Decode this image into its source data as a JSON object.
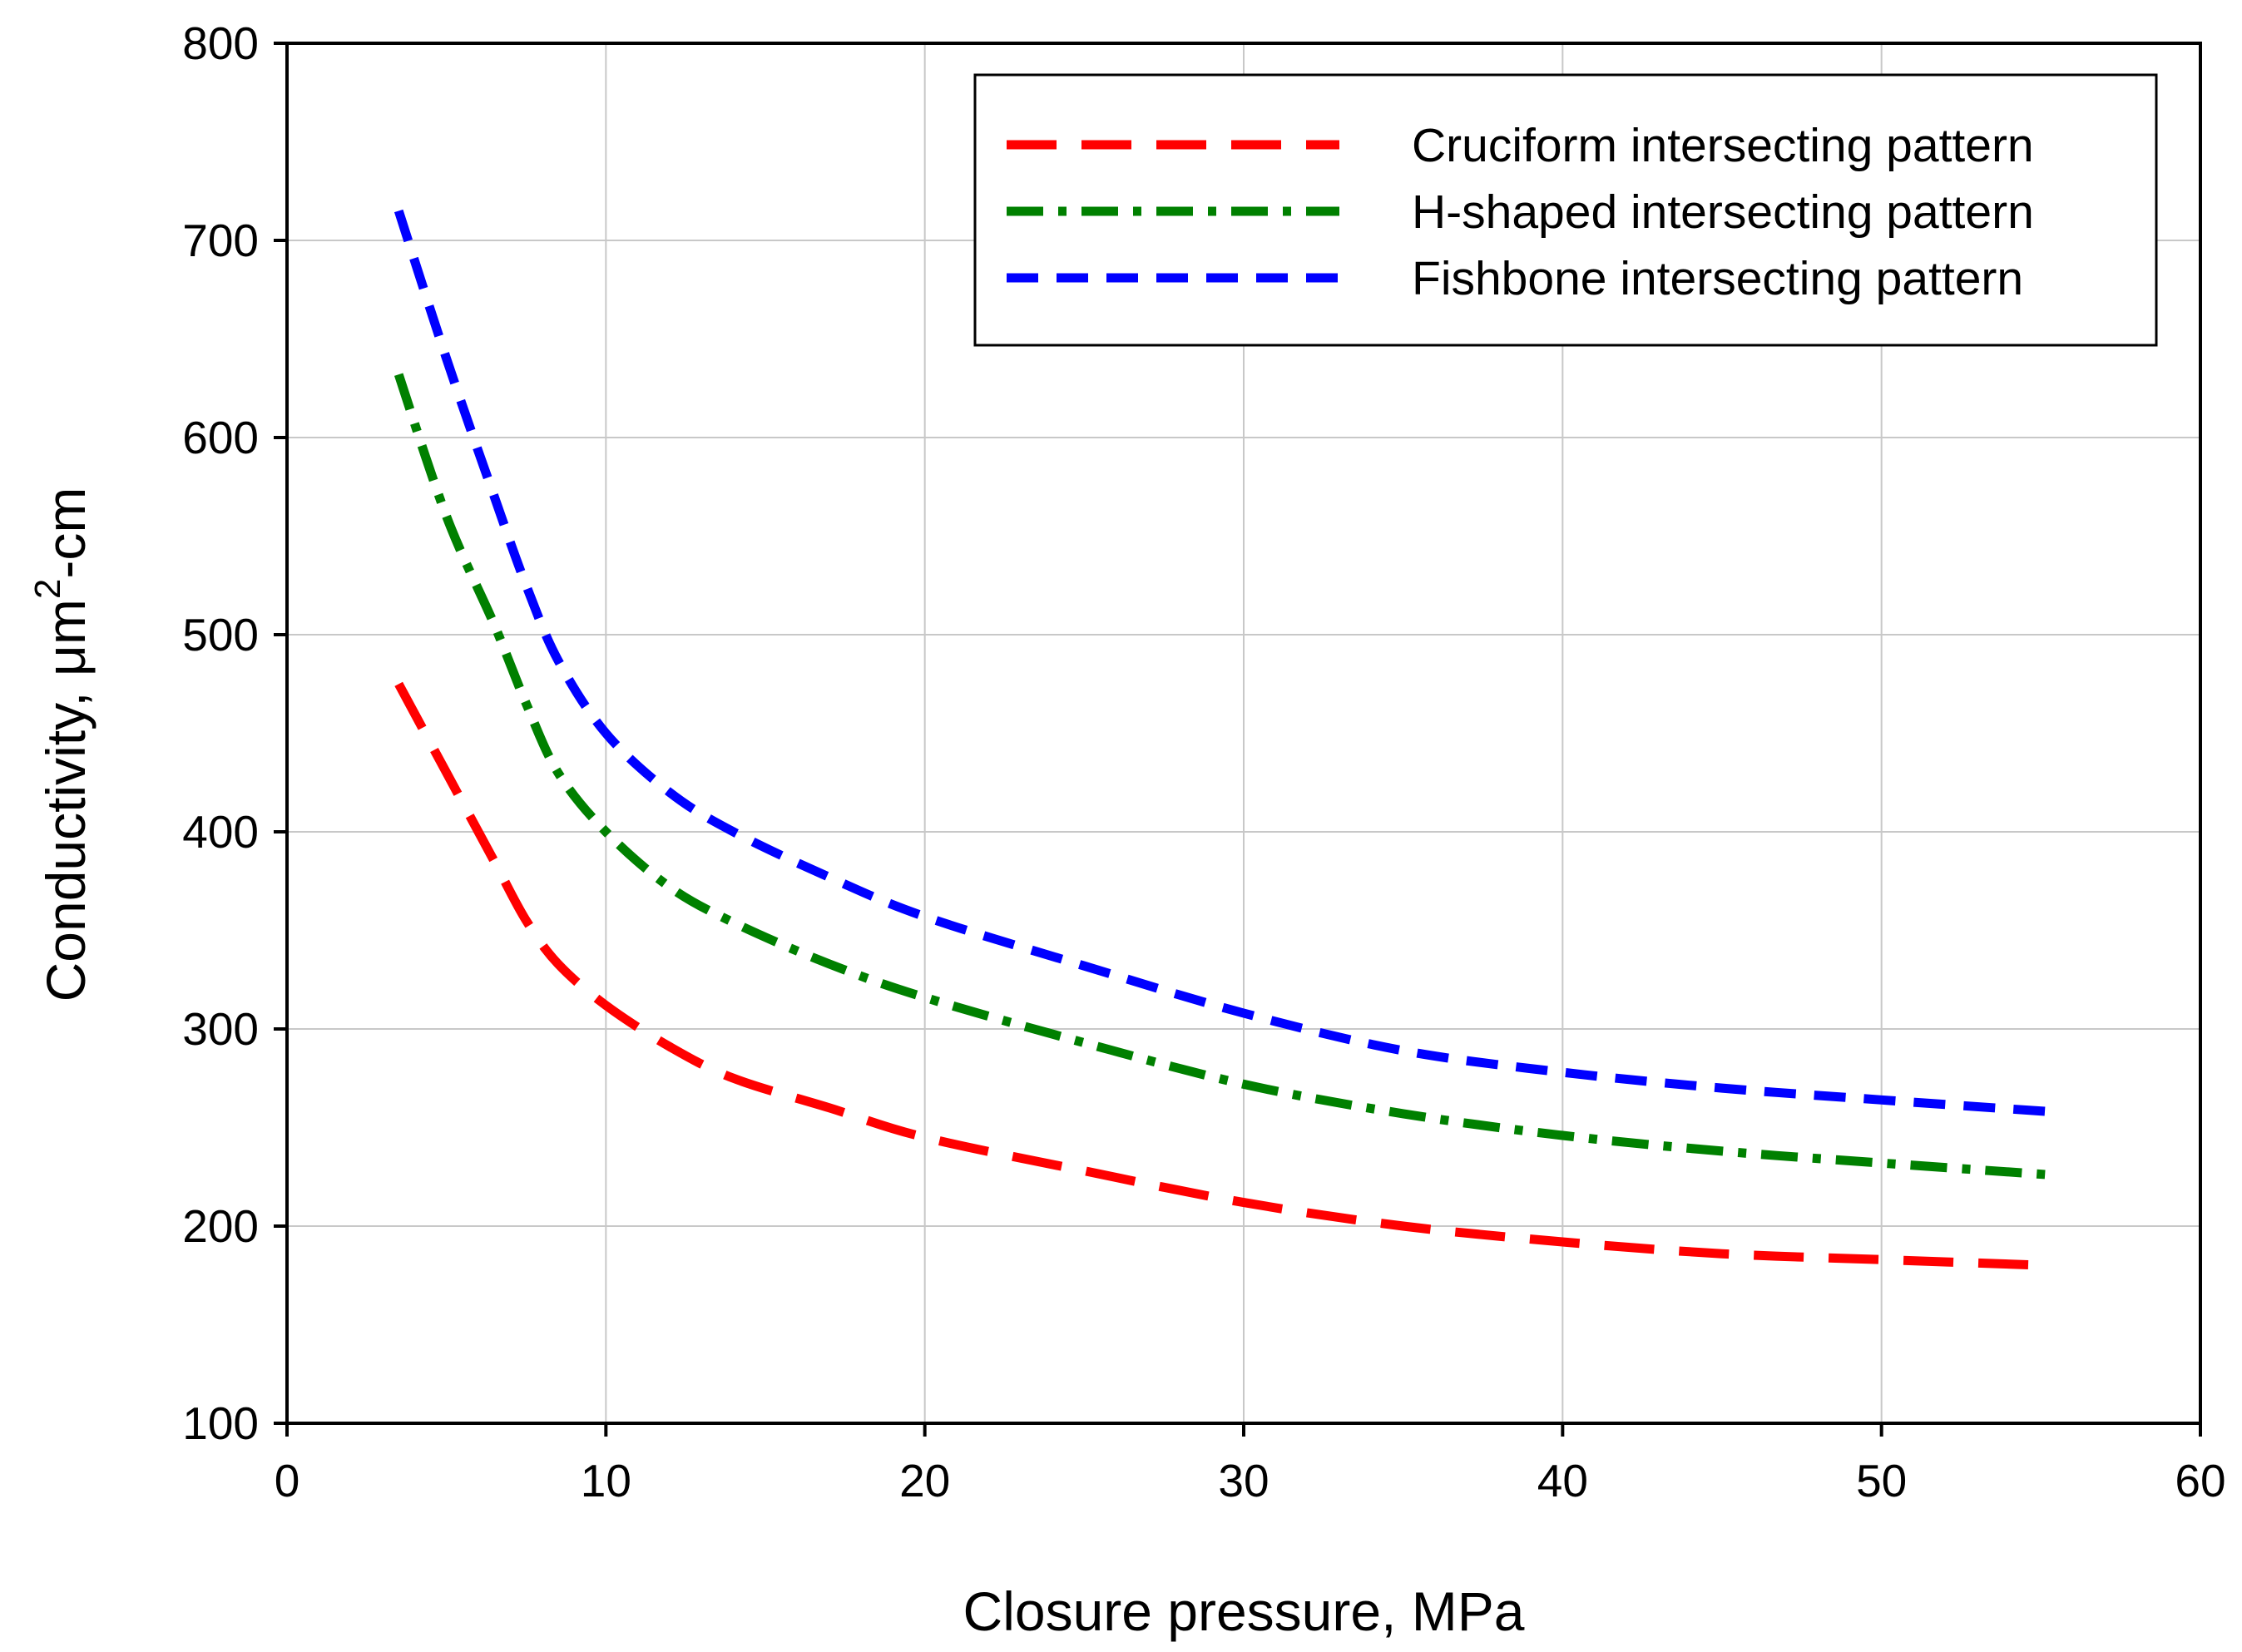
{
  "chart_data": {
    "type": "line",
    "title": "",
    "xlabel": "Closure pressure, MPa",
    "ylabel": {
      "prefix": "Conductivity, μm",
      "superscript": "2",
      "suffix": "-cm"
    },
    "xlim": [
      0,
      60
    ],
    "ylim": [
      100,
      800
    ],
    "xticks": [
      0,
      10,
      20,
      30,
      40,
      50,
      60
    ],
    "yticks": [
      100,
      200,
      300,
      400,
      500,
      600,
      700,
      800
    ],
    "xtick_labels": [
      "0",
      "10",
      "20",
      "30",
      "40",
      "50",
      "60"
    ],
    "ytick_labels": [
      "100",
      "200",
      "300",
      "400",
      "500",
      "600",
      "700",
      "800"
    ],
    "grid": true,
    "legend_position": "top-right",
    "series": [
      {
        "name": "Cruciform intersecting pattern",
        "color": "#ff0000",
        "line_style": "long-dash",
        "x": [
          3.5,
          5,
          6.5,
          7.5,
          8.5,
          10,
          12,
          14,
          17,
          20,
          25,
          30,
          35,
          40,
          45,
          50,
          55.3
        ],
        "y": [
          475,
          430,
          385,
          355,
          333,
          312,
          291,
          275,
          260,
          245,
          228,
          212,
          200,
          192,
          186,
          183,
          180
        ]
      },
      {
        "name": "H-shaped intersecting pattern",
        "color": "#008000",
        "line_style": "dash-dot",
        "x": [
          3.5,
          5,
          6.5,
          7.5,
          8.5,
          10,
          12,
          14,
          17,
          20,
          25,
          30,
          35,
          40,
          45,
          50,
          55.3
        ],
        "y": [
          632,
          560,
          505,
          465,
          430,
          400,
          372,
          354,
          333,
          316,
          293,
          272,
          257,
          246,
          238,
          232,
          226
        ]
      },
      {
        "name": "Fishbone intersecting pattern",
        "color": "#0000ff",
        "line_style": "short-dash",
        "x": [
          3.5,
          5,
          6.5,
          7.5,
          8.5,
          10,
          12,
          14,
          17,
          20,
          25,
          30,
          35,
          40,
          45,
          50,
          55.3
        ],
        "y": [
          715,
          640,
          570,
          525,
          487,
          450,
          420,
          400,
          377,
          357,
          332,
          308,
          289,
          278,
          270,
          264,
          258
        ]
      }
    ]
  }
}
